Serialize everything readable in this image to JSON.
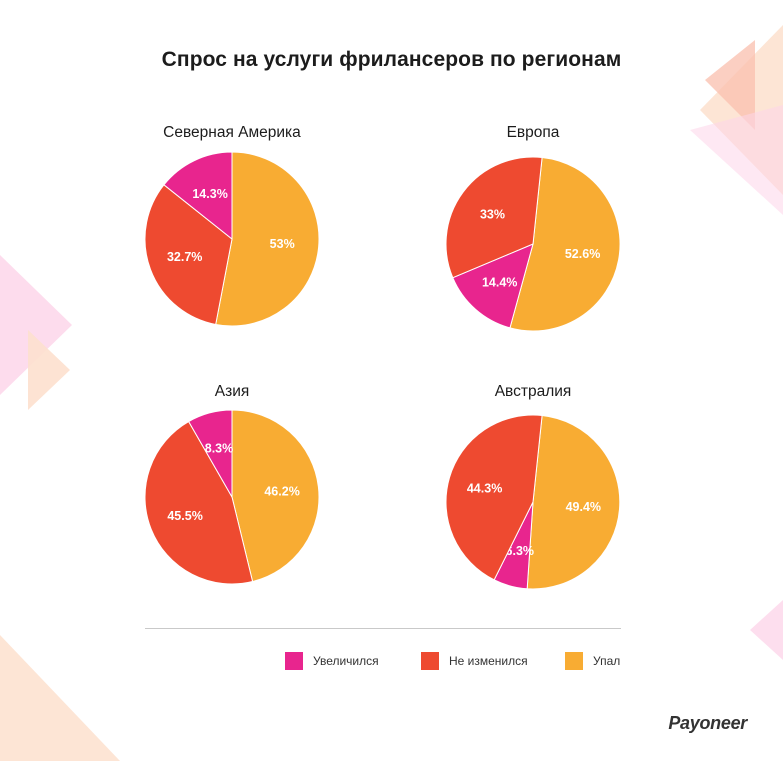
{
  "colors": {
    "increased": "#E8258E",
    "unchanged": "#EE4A30",
    "decreased": "#F8AC33",
    "title": "#1C1C1C",
    "label": "#FFFFFF",
    "deco_pink": "#FDD6EA",
    "deco_peach": "#FDE0CE",
    "deco_salmon": "#F9BFAE"
  },
  "title": "Спрос на услуги фрилансеров по регионам",
  "legend": [
    {
      "key": "increased",
      "label": "Увеличился"
    },
    {
      "key": "unchanged",
      "label": "Не изменился"
    },
    {
      "key": "decreased",
      "label": "Упал"
    }
  ],
  "brand": "Payoneer",
  "chart_data": [
    {
      "type": "pie",
      "title": "Северная Америка",
      "slices": [
        {
          "label": "Упал",
          "value": 53,
          "display": "53%"
        },
        {
          "label": "Не изменился",
          "value": 32.7,
          "display": "32.7%"
        },
        {
          "label": "Увеличился",
          "value": 14.3,
          "display": "14.3%"
        }
      ]
    },
    {
      "type": "pie",
      "title": "Европа",
      "slices": [
        {
          "label": "Упал",
          "value": 52.6,
          "display": "52.6%"
        },
        {
          "label": "Увеличился",
          "value": 14.4,
          "display": "14.4%"
        },
        {
          "label": "Не изменился",
          "value": 33,
          "display": "33%"
        }
      ]
    },
    {
      "type": "pie",
      "title": "Азия",
      "slices": [
        {
          "label": "Упал",
          "value": 46.2,
          "display": "46.2%"
        },
        {
          "label": "Не изменился",
          "value": 45.5,
          "display": "45.5%"
        },
        {
          "label": "Увеличился",
          "value": 8.3,
          "display": "8.3%"
        }
      ]
    },
    {
      "type": "pie",
      "title": "Австралия",
      "slices": [
        {
          "label": "Упал",
          "value": 49.4,
          "display": "49.4%"
        },
        {
          "label": "Увеличился",
          "value": 6.3,
          "display": "6.3%"
        },
        {
          "label": "Не изменился",
          "value": 44.3,
          "display": "44.3%"
        }
      ]
    }
  ]
}
